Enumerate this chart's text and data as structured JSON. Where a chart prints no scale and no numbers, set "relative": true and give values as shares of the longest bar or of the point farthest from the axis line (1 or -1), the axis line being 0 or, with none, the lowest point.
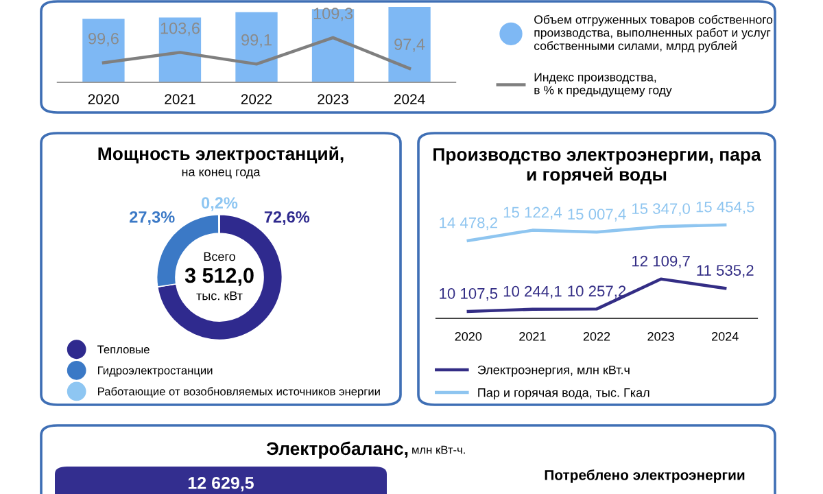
{
  "chart_data": [
    {
      "type": "bar",
      "relative": true,
      "categories": [
        "2020",
        "2021",
        "2022",
        "2023",
        "2024"
      ],
      "legend": "right",
      "grid": false,
      "series": [
        {
          "name": "Объем отгруженных товаров собственного\nпроизводства, выполненных работ и услуг\nсобственными силами, млрд рублей",
          "color": "#7eb8f4",
          "values": [
            0.84,
            0.86,
            0.93,
            0.97,
            1.0
          ]
        }
      ]
    },
    {
      "type": "line",
      "categories": [
        "2020",
        "2021",
        "2022",
        "2023",
        "2024"
      ],
      "legend": "right",
      "tick_labels": false,
      "grid": false,
      "series": [
        {
          "name": "Индекс производства,\nв % к предыдущему году",
          "color": "#7f7f7f",
          "values": [
            99.6,
            103.6,
            99.1,
            109.3,
            97.4
          ],
          "value_labels": [
            "99,6",
            "103,6",
            "99,1",
            "109,3",
            "97,4"
          ]
        }
      ]
    },
    {
      "type": "donut",
      "title": "Мощность электростанций,",
      "subtitle": "на конец года",
      "categories": [
        "Тепловые",
        "Гидроэлектростанции",
        "Работающие от возобновляемых источников энергии"
      ],
      "values": [
        72.6,
        27.3,
        0.2
      ],
      "colors": [
        "#2f2a8e",
        "#3b79c6",
        "#8ec6f2"
      ],
      "value_labels": [
        "72,6%",
        "27,3%",
        "0,2%"
      ],
      "annotations": [
        "Всего",
        "3 512,0",
        "тыс. кВт"
      ],
      "legend": "bottom"
    },
    {
      "type": "line",
      "title": "Производство электроэнергии, пара\nи горячей воды",
      "categories": [
        "2020",
        "2021",
        "2022",
        "2023",
        "2024"
      ],
      "legend": "bottom",
      "tick_labels": "x",
      "grid": false,
      "series": [
        {
          "name": "Электроэнергия, млн кВт.ч",
          "color": "#332d85",
          "values": [
            10107.5,
            10244.1,
            10257.2,
            12109.7,
            11535.2
          ],
          "value_labels": [
            "10 107,5",
            "10 244,1",
            "10 257,2",
            "12 109,7",
            "11 535,2"
          ]
        },
        {
          "name": "Пар и горячая вода, тыс. Гкал",
          "color": "#8ec5f0",
          "values": [
            14478.2,
            15122.4,
            15007.4,
            15347.0,
            15454.5
          ],
          "value_labels": [
            "14 478,2",
            "15 122,4",
            "15 007,4",
            "15 347,0",
            "15 454,5"
          ]
        }
      ]
    },
    {
      "type": "other",
      "title": "Электробаланс,",
      "subtitle": "млн кВт-ч.",
      "annotations": [
        "12 629,5",
        "Потреблено электроэнергии"
      ]
    }
  ]
}
